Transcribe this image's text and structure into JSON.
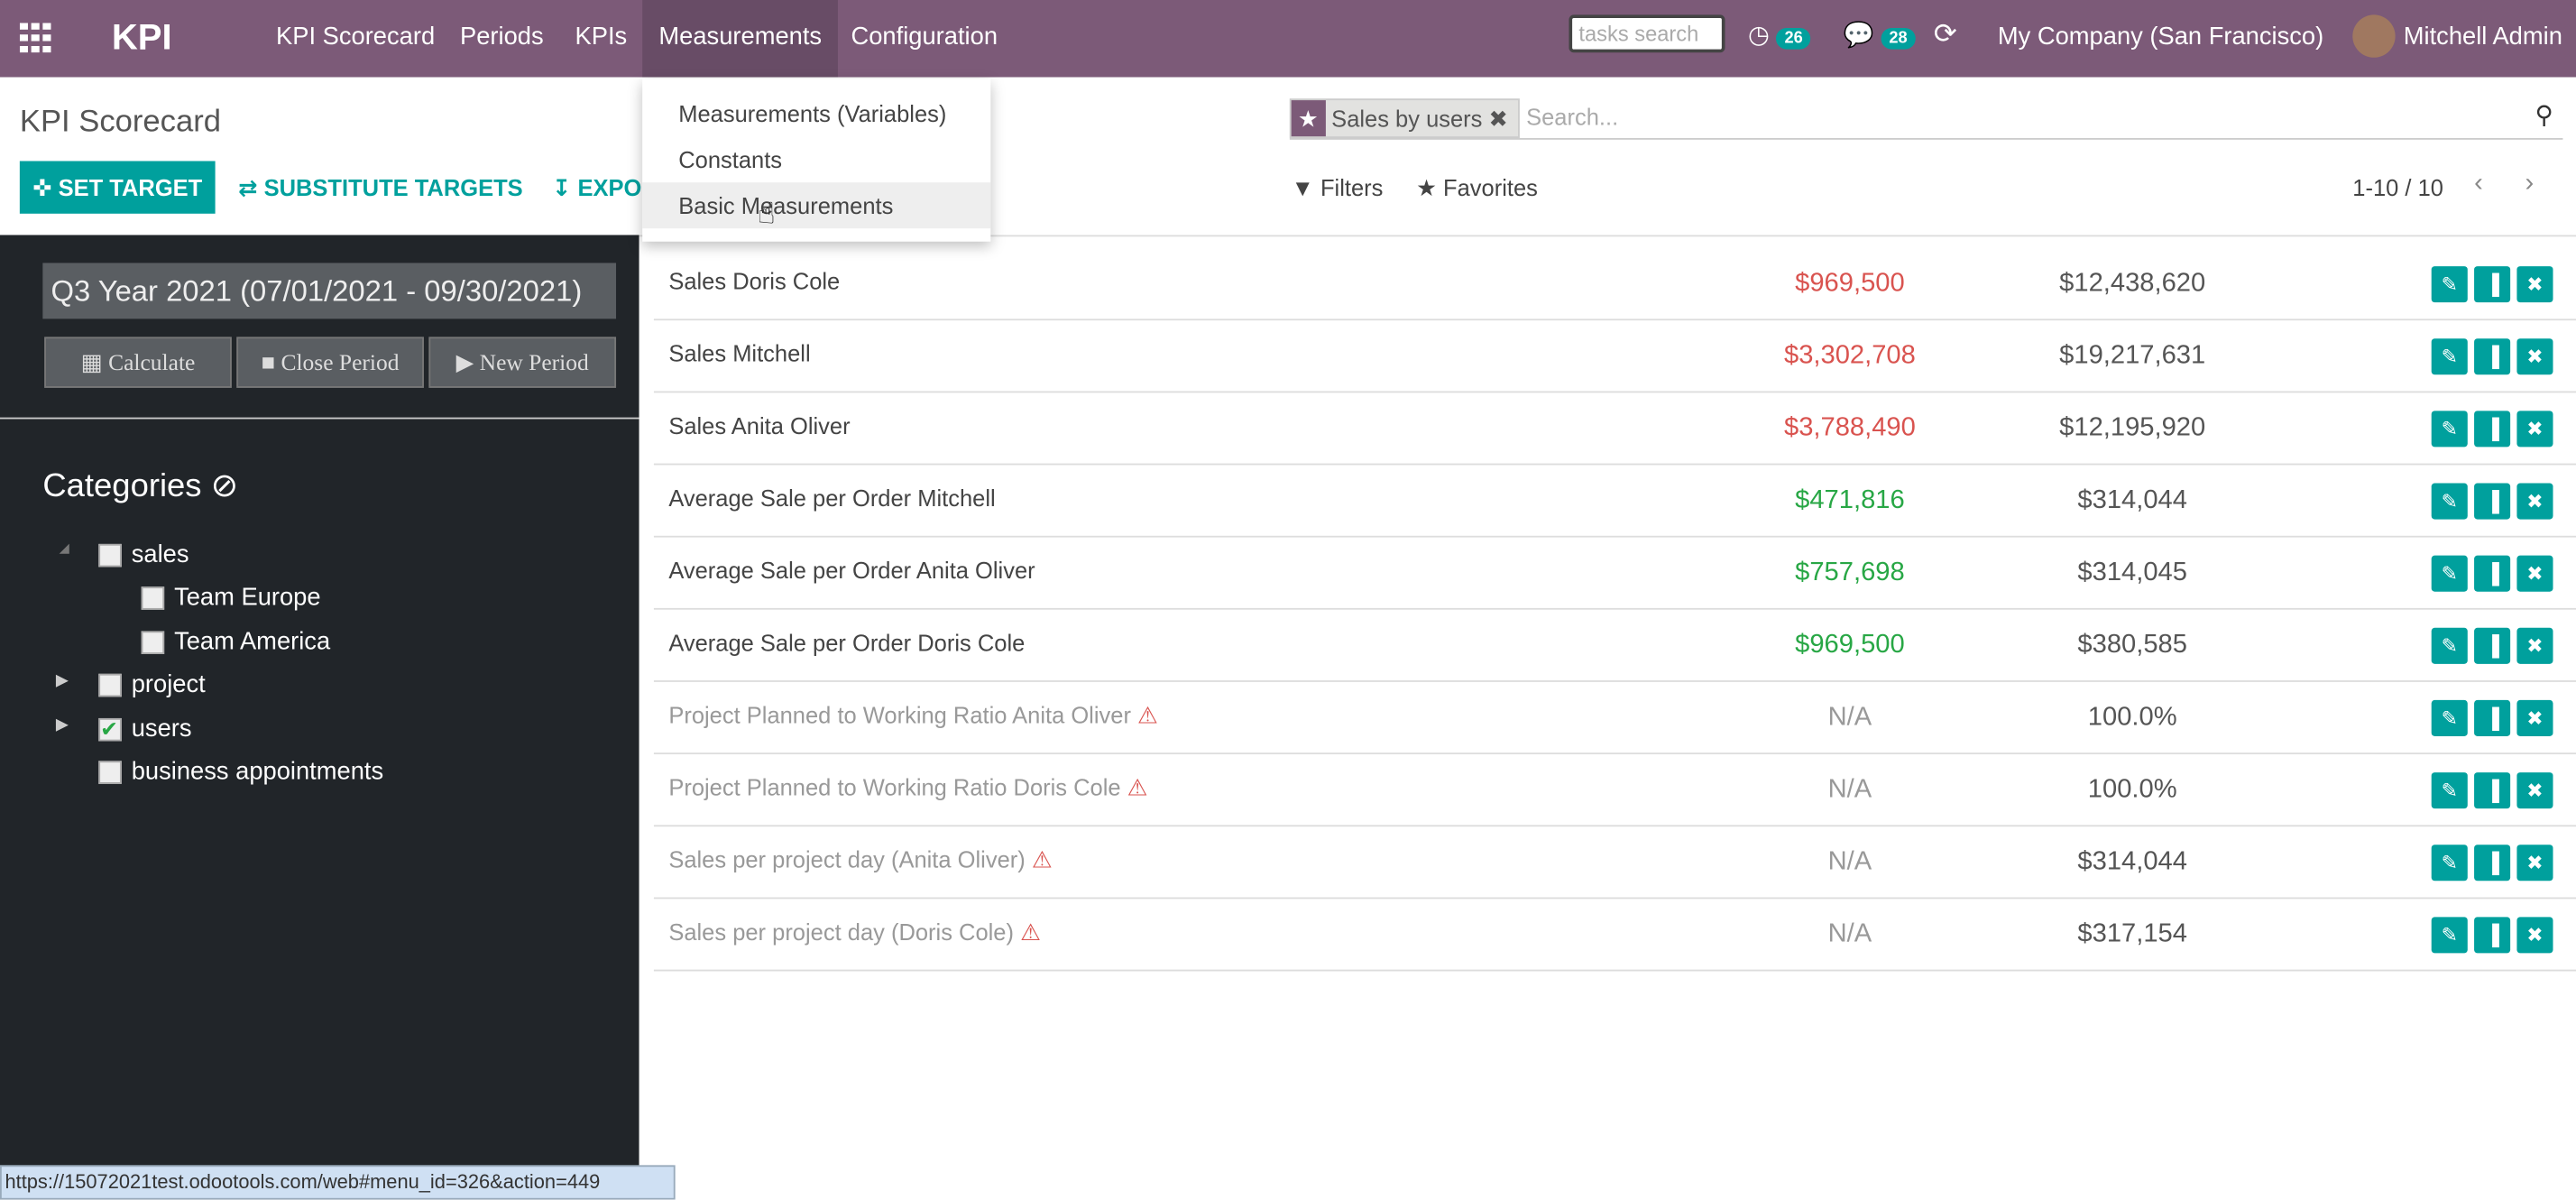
{
  "navbar": {
    "app": "KPI",
    "menus": [
      "KPI Scorecard",
      "Periods",
      "KPIs",
      "Measurements",
      "Configuration"
    ],
    "active_menu": 3,
    "search_placeholder": "tasks search",
    "activity_count": "26",
    "message_count": "28",
    "company": "My Company (San Francisco)",
    "user": "Mitchell Admin"
  },
  "dropdown": {
    "items": [
      "Measurements (Variables)",
      "Constants",
      "Basic Measurements"
    ],
    "highlighted": 2
  },
  "control_panel": {
    "title": "KPI Scorecard",
    "buttons": [
      "SET TARGET",
      "SUBSTITUTE TARGETS",
      "EXPORT"
    ],
    "facet": "Sales by users",
    "search_placeholder": "Search...",
    "filters": "Filters",
    "favorites": "Favorites",
    "pager": "1-10 / 10"
  },
  "sidebar": {
    "period": "Q3 Year 2021 (07/01/2021 - 09/30/2021)",
    "buttons": [
      "Calculate",
      "Close Period",
      "New Period"
    ],
    "categories_title": "Categories",
    "tree": [
      {
        "label": "sales",
        "level": 0,
        "checked": false,
        "expanded": true
      },
      {
        "label": "Team Europe",
        "level": 1,
        "checked": false
      },
      {
        "label": "Team America",
        "level": 1,
        "checked": false
      },
      {
        "label": "project",
        "level": 0,
        "checked": false,
        "collapsed": true
      },
      {
        "label": "users",
        "level": 0,
        "checked": true,
        "collapsed": true
      },
      {
        "label": "business appointments",
        "level": 0,
        "checked": false
      }
    ]
  },
  "table": {
    "rows": [
      [
        "Sales Doris Cole",
        "$969,500",
        "$12,438,620",
        "bad"
      ],
      [
        "Sales Mitchell",
        "$3,302,708",
        "$19,217,631",
        "bad"
      ],
      [
        "Sales Anita Oliver",
        "$3,788,490",
        "$12,195,920",
        "bad"
      ],
      [
        "Average Sale per Order Mitchell",
        "$471,816",
        "$314,044",
        "good"
      ],
      [
        "Average Sale per Order Anita Oliver",
        "$757,698",
        "$314,045",
        "good"
      ],
      [
        "Average Sale per Order Doris Cole",
        "$969,500",
        "$380,585",
        "good"
      ],
      [
        "Project Planned to Working Ratio Anita Oliver",
        "N/A",
        "100.0%",
        "na"
      ],
      [
        "Project Planned to Working Ratio Doris Cole",
        "N/A",
        "100.0%",
        "na"
      ],
      [
        "Sales per project day (Anita Oliver)",
        "N/A",
        "$314,044",
        "na"
      ],
      [
        "Sales per project day (Doris Cole)",
        "N/A",
        "$317,154",
        "na"
      ]
    ]
  },
  "status_bar": {
    "url": "https://15072021test.odootools.com/web#menu_id=326&action=449"
  }
}
